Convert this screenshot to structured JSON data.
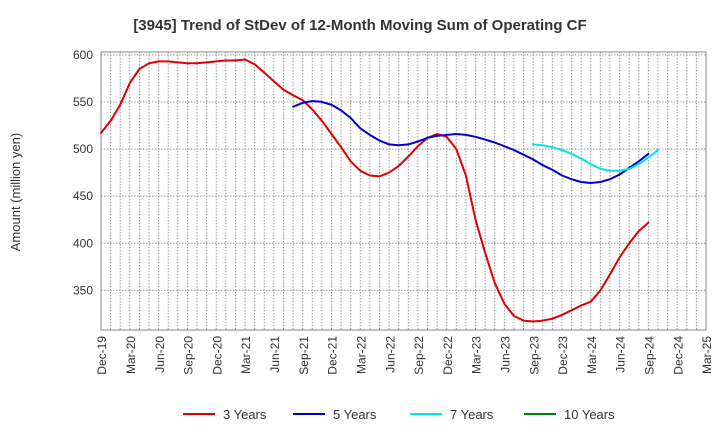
{
  "chart_data": {
    "type": "line",
    "title": "[3945]  Trend of StDev of 12-Month Moving Sum of Operating CF",
    "xlabel": "",
    "ylabel": "Amount (million yen)",
    "ylim": [
      308,
      603
    ],
    "yticks": [
      350,
      400,
      450,
      500,
      550,
      600
    ],
    "grid": true,
    "legend_position": "bottom",
    "x_ticks": [
      "Dec-19",
      "Mar-20",
      "Jun-20",
      "Sep-20",
      "Dec-20",
      "Mar-21",
      "Jun-21",
      "Sep-21",
      "Dec-21",
      "Mar-22",
      "Jun-22",
      "Sep-22",
      "Dec-22",
      "Mar-23",
      "Jun-23",
      "Sep-23",
      "Dec-23",
      "Mar-24",
      "Jun-24",
      "Sep-24",
      "Dec-24",
      "Mar-25"
    ],
    "series": [
      {
        "name": "3 Years",
        "color": "#e00000",
        "start_index": 0,
        "values": [
          517,
          530,
          547,
          570,
          585,
          591,
          593,
          593,
          592,
          591,
          591,
          592,
          593,
          594,
          594,
          595,
          590,
          581,
          572,
          563,
          557,
          552,
          542,
          530,
          516,
          502,
          487,
          477,
          472,
          471,
          475,
          482,
          492,
          503,
          512,
          516,
          513,
          500,
          472,
          425,
          390,
          358,
          336,
          323,
          318,
          317,
          318,
          320,
          324,
          329,
          334,
          338,
          350,
          367,
          385,
          400,
          413,
          422
        ]
      },
      {
        "name": "5 Years",
        "color": "#0000cc",
        "start_index": 20,
        "values": [
          545,
          549,
          551,
          550,
          547,
          541,
          533,
          522,
          515,
          509,
          505,
          504,
          505,
          508,
          512,
          514,
          515,
          516,
          515,
          513,
          510,
          507,
          503,
          499,
          494,
          489,
          483,
          478,
          472,
          468,
          465,
          464,
          465,
          468,
          473,
          480,
          487,
          495
        ]
      },
      {
        "name": "7 Years",
        "color": "#00e5e5",
        "start_index": 45,
        "values": [
          505,
          504,
          502,
          499,
          495,
          490,
          484,
          479,
          477,
          477,
          479,
          484,
          491,
          499
        ]
      },
      {
        "name": "10 Years",
        "color": "#008000",
        "start_index": 0,
        "values": []
      }
    ]
  }
}
